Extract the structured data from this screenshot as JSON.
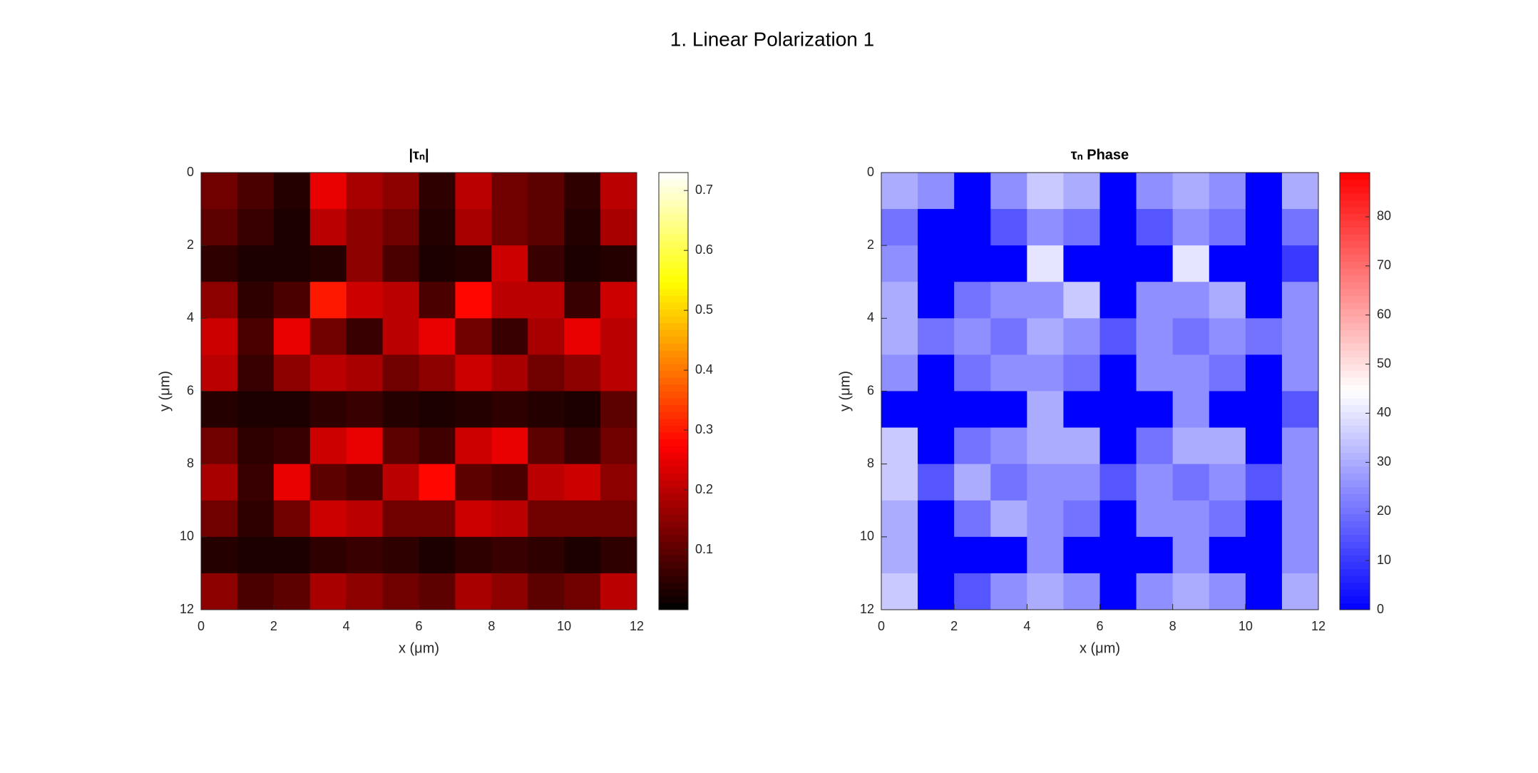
{
  "title": "1. Linear Polarization 1",
  "chart_data": [
    {
      "type": "heatmap",
      "title": "|τₙ|",
      "xlabel": "x (μm)",
      "ylabel": "y (μm)",
      "xlim": [
        0,
        12
      ],
      "ylim": [
        0,
        12
      ],
      "y_reversed": true,
      "xticks": [
        0,
        2,
        4,
        6,
        8,
        10,
        12
      ],
      "yticks": [
        0,
        2,
        4,
        6,
        8,
        10,
        12
      ],
      "colormap": "hot",
      "clim": [
        0,
        0.73
      ],
      "cticks": [
        0.1,
        0.2,
        0.3,
        0.4,
        0.5,
        0.6,
        0.7
      ],
      "z": [
        [
          0.12,
          0.08,
          0.04,
          0.25,
          0.18,
          0.15,
          0.05,
          0.2,
          0.12,
          0.1,
          0.05,
          0.2
        ],
        [
          0.1,
          0.06,
          0.03,
          0.2,
          0.15,
          0.12,
          0.04,
          0.18,
          0.12,
          0.1,
          0.04,
          0.18
        ],
        [
          0.05,
          0.03,
          0.03,
          0.04,
          0.15,
          0.08,
          0.03,
          0.04,
          0.22,
          0.06,
          0.03,
          0.04
        ],
        [
          0.15,
          0.05,
          0.08,
          0.3,
          0.22,
          0.2,
          0.08,
          0.28,
          0.2,
          0.2,
          0.06,
          0.22
        ],
        [
          0.22,
          0.08,
          0.25,
          0.12,
          0.06,
          0.2,
          0.25,
          0.12,
          0.06,
          0.18,
          0.25,
          0.2
        ],
        [
          0.2,
          0.06,
          0.15,
          0.2,
          0.18,
          0.12,
          0.15,
          0.22,
          0.18,
          0.12,
          0.15,
          0.2
        ],
        [
          0.04,
          0.03,
          0.03,
          0.05,
          0.06,
          0.04,
          0.03,
          0.04,
          0.05,
          0.04,
          0.03,
          0.1
        ],
        [
          0.12,
          0.05,
          0.06,
          0.22,
          0.25,
          0.1,
          0.07,
          0.22,
          0.25,
          0.1,
          0.06,
          0.12
        ],
        [
          0.18,
          0.06,
          0.25,
          0.1,
          0.08,
          0.2,
          0.28,
          0.1,
          0.08,
          0.2,
          0.22,
          0.15
        ],
        [
          0.12,
          0.05,
          0.12,
          0.22,
          0.2,
          0.12,
          0.12,
          0.22,
          0.2,
          0.12,
          0.12,
          0.12
        ],
        [
          0.04,
          0.03,
          0.03,
          0.05,
          0.06,
          0.05,
          0.03,
          0.05,
          0.06,
          0.05,
          0.03,
          0.05
        ],
        [
          0.15,
          0.08,
          0.1,
          0.18,
          0.15,
          0.12,
          0.1,
          0.18,
          0.15,
          0.1,
          0.12,
          0.2
        ]
      ]
    },
    {
      "type": "heatmap",
      "title": "τₙ Phase",
      "xlabel": "x (μm)",
      "ylabel": "y (μm)",
      "xlim": [
        0,
        12
      ],
      "ylim": [
        0,
        12
      ],
      "y_reversed": true,
      "xticks": [
        0,
        2,
        4,
        6,
        8,
        10,
        12
      ],
      "yticks": [
        0,
        2,
        4,
        6,
        8,
        10,
        12
      ],
      "colormap": "bwr",
      "clim": [
        0,
        89
      ],
      "cticks": [
        0,
        10,
        20,
        30,
        40,
        50,
        60,
        70,
        80
      ],
      "z": [
        [
          30,
          25,
          0,
          25,
          35,
          30,
          0,
          25,
          30,
          25,
          0,
          30
        ],
        [
          20,
          0,
          0,
          15,
          25,
          20,
          0,
          15,
          25,
          20,
          0,
          20
        ],
        [
          25,
          0,
          0,
          0,
          40,
          0,
          0,
          0,
          40,
          0,
          0,
          10
        ],
        [
          30,
          0,
          20,
          25,
          25,
          35,
          0,
          25,
          25,
          30,
          0,
          25
        ],
        [
          30,
          20,
          25,
          20,
          30,
          25,
          15,
          25,
          20,
          25,
          20,
          25
        ],
        [
          25,
          0,
          20,
          25,
          25,
          20,
          0,
          25,
          25,
          20,
          0,
          25
        ],
        [
          0,
          0,
          0,
          0,
          30,
          0,
          0,
          0,
          25,
          0,
          0,
          15
        ],
        [
          35,
          0,
          20,
          25,
          30,
          30,
          0,
          20,
          30,
          30,
          0,
          25
        ],
        [
          35,
          15,
          30,
          20,
          25,
          25,
          15,
          25,
          20,
          25,
          15,
          25
        ],
        [
          30,
          0,
          20,
          30,
          25,
          20,
          0,
          25,
          25,
          20,
          0,
          25
        ],
        [
          30,
          0,
          0,
          0,
          25,
          0,
          0,
          0,
          25,
          0,
          0,
          25
        ],
        [
          35,
          0,
          15,
          25,
          30,
          25,
          0,
          25,
          30,
          25,
          0,
          30
        ]
      ]
    }
  ]
}
